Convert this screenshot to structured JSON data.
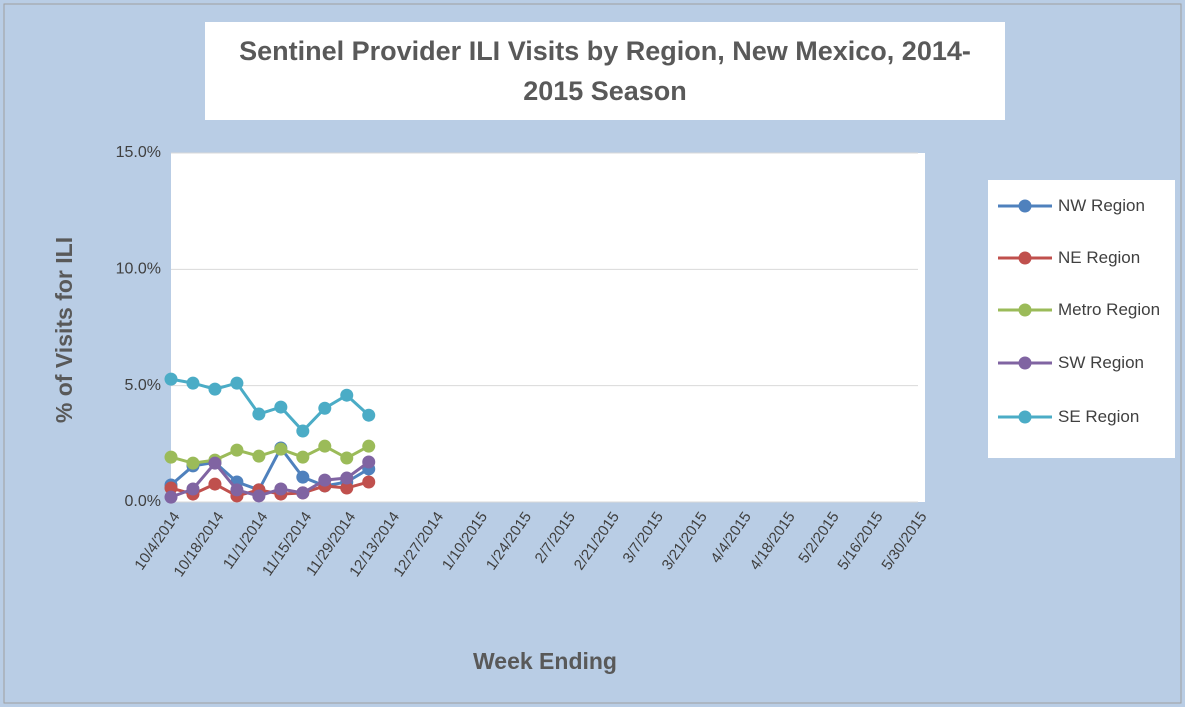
{
  "chart_data": {
    "type": "line",
    "title": "Sentinel Provider ILI Visits by Region, New Mexico, 2014-2015 Season",
    "x_label": "Week Ending",
    "y_label": "% of Visits for ILI",
    "categories": [
      "10/4/2014",
      null,
      "10/18/2014",
      null,
      "11/1/2014",
      null,
      "11/15/2014",
      null,
      "11/29/2014",
      null,
      "12/13/2014",
      null,
      "12/27/2014",
      null,
      "1/10/2015",
      null,
      "1/24/2015",
      null,
      "2/7/2015",
      null,
      "2/21/2015",
      null,
      "3/7/2015",
      null,
      "3/21/2015",
      null,
      "4/4/2015",
      null,
      "4/18/2015",
      null,
      "5/2/2015",
      null,
      "5/16/2015",
      null,
      "5/30/2015"
    ],
    "series": [
      {
        "name": "NW Region",
        "color": "#4f81bd",
        "values": [
          0.73,
          1.55,
          1.7,
          0.86,
          0.52,
          2.32,
          1.07,
          0.69,
          0.86,
          1.42,
          null,
          null,
          null,
          null,
          null,
          null,
          null,
          null,
          null,
          null,
          null,
          null,
          null,
          null,
          null,
          null,
          null,
          null,
          null,
          null,
          null,
          null,
          null,
          null,
          null
        ]
      },
      {
        "name": "NE Region",
        "color": "#c0504d",
        "values": [
          0.6,
          0.34,
          0.77,
          0.26,
          0.52,
          0.34,
          0.39,
          0.69,
          0.6,
          0.86,
          null,
          null,
          null,
          null,
          null,
          null,
          null,
          null,
          null,
          null,
          null,
          null,
          null,
          null,
          null,
          null,
          null,
          null,
          null,
          null,
          null,
          null,
          null,
          null,
          null
        ]
      },
      {
        "name": "Metro Region",
        "color": "#9bbb59",
        "values": [
          1.93,
          1.67,
          1.8,
          2.23,
          1.97,
          2.27,
          1.93,
          2.4,
          1.89,
          2.4,
          null,
          null,
          null,
          null,
          null,
          null,
          null,
          null,
          null,
          null,
          null,
          null,
          null,
          null,
          null,
          null,
          null,
          null,
          null,
          null,
          null,
          null,
          null,
          null,
          null
        ]
      },
      {
        "name": "SW Region",
        "color": "#8064a2",
        "values": [
          0.21,
          0.56,
          1.67,
          0.52,
          0.26,
          0.56,
          0.39,
          0.94,
          1.03,
          1.72,
          null,
          null,
          null,
          null,
          null,
          null,
          null,
          null,
          null,
          null,
          null,
          null,
          null,
          null,
          null,
          null,
          null,
          null,
          null,
          null,
          null,
          null,
          null,
          null,
          null
        ]
      },
      {
        "name": "SE Region",
        "color": "#4bacc6",
        "values": [
          5.28,
          5.11,
          4.85,
          5.11,
          3.78,
          4.08,
          3.05,
          4.03,
          4.59,
          3.73,
          null,
          null,
          null,
          null,
          null,
          null,
          null,
          null,
          null,
          null,
          null,
          null,
          null,
          null,
          null,
          null,
          null,
          null,
          null,
          null,
          null,
          null,
          null,
          null,
          null
        ]
      }
    ],
    "ylim": [
      0,
      15
    ],
    "yticks": [
      {
        "value": 0,
        "label": "0.0%"
      },
      {
        "value": 5,
        "label": "5.0%"
      },
      {
        "value": 10,
        "label": "10.0%"
      },
      {
        "value": 15,
        "label": "15.0%"
      }
    ],
    "grid": true,
    "legend": "right"
  }
}
